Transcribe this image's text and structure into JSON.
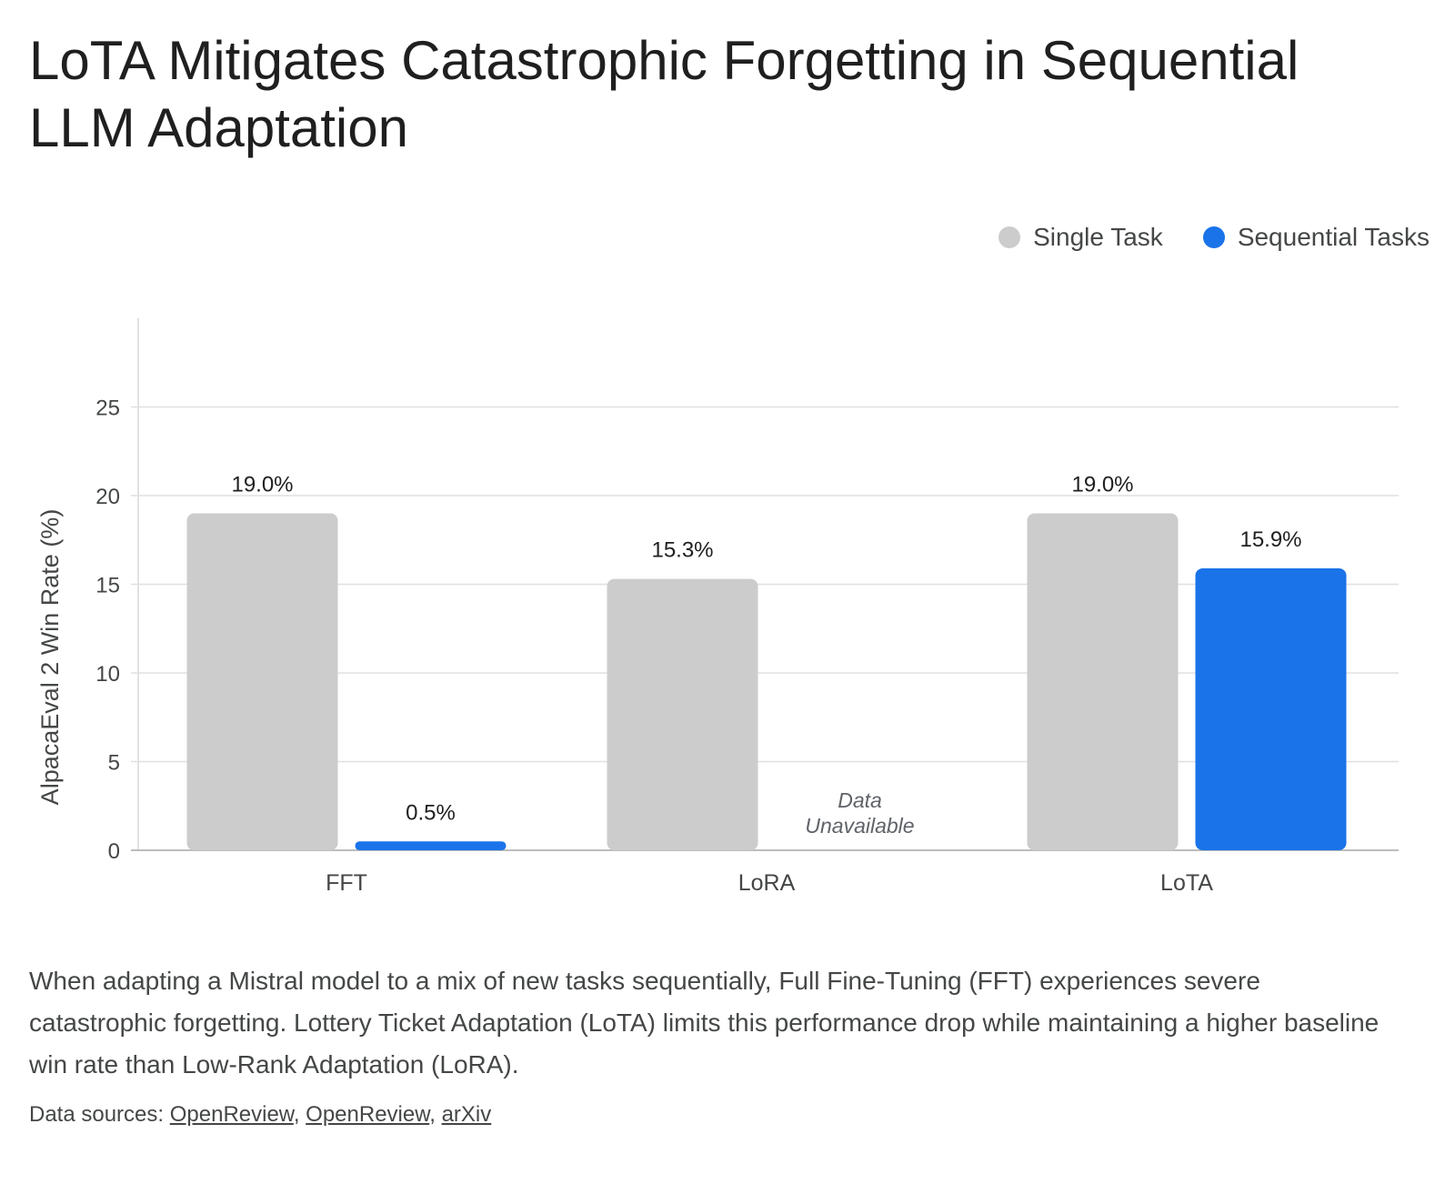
{
  "title": "LoTA Mitigates Catastrophic Forgetting in Sequential LLM Adaptation",
  "legend": [
    {
      "label": "Single Task",
      "color": "#cccccc"
    },
    {
      "label": "Sequential Tasks",
      "color": "#1a73e8"
    }
  ],
  "chart_data": {
    "type": "bar",
    "categories": [
      "FFT",
      "LoRA",
      "LoTA"
    ],
    "series": [
      {
        "name": "Single Task",
        "values": [
          19.0,
          15.3,
          19.0
        ],
        "labels": [
          "19.0%",
          "15.3%",
          "19.0%"
        ],
        "color": "#cccccc"
      },
      {
        "name": "Sequential Tasks",
        "values": [
          0.5,
          null,
          15.9
        ],
        "labels": [
          "0.5%",
          "",
          "15.9%"
        ],
        "color": "#1a73e8"
      }
    ],
    "missing_note": "Data Unavailable",
    "ylabel": "AlpacaEval 2 Win Rate (%)",
    "xlabel": "",
    "yticks": [
      0,
      5,
      10,
      15,
      20,
      25
    ],
    "ylim": [
      0,
      30
    ],
    "grid": true,
    "legend_position": "top-right"
  },
  "description": "When adapting a Mistral model to a mix of new tasks sequentially, Full Fine-Tuning (FFT) experiences severe catastrophic forgetting. Lottery Ticket Adaptation (LoTA) limits this performance drop while maintaining a higher baseline win rate than Low-Rank Adaptation (LoRA).",
  "sources": {
    "prefix": "Data sources: ",
    "links": [
      "OpenReview",
      "OpenReview",
      "arXiv"
    ]
  }
}
